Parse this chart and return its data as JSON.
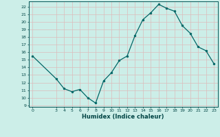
{
  "x": [
    0,
    3,
    4,
    5,
    6,
    7,
    8,
    9,
    10,
    11,
    12,
    13,
    14,
    15,
    16,
    17,
    18,
    19,
    20,
    21,
    22,
    23
  ],
  "y": [
    15.5,
    12.5,
    11.2,
    10.8,
    11.1,
    10.0,
    9.3,
    12.2,
    13.3,
    14.9,
    15.5,
    18.2,
    20.3,
    21.2,
    22.3,
    21.8,
    21.4,
    19.5,
    18.5,
    16.7,
    16.2,
    14.5
  ],
  "line_color": "#006666",
  "marker_color": "#006666",
  "bg_color": "#cceee8",
  "grid_color": "#aaddcc",
  "xlabel": "Humidex (Indice chaleur)",
  "xlim": [
    -0.5,
    23.5
  ],
  "ylim": [
    8.8,
    22.7
  ],
  "yticks": [
    9,
    10,
    11,
    12,
    13,
    14,
    15,
    16,
    17,
    18,
    19,
    20,
    21,
    22
  ],
  "xticks": [
    0,
    3,
    4,
    5,
    6,
    7,
    8,
    9,
    10,
    11,
    12,
    13,
    14,
    15,
    16,
    17,
    18,
    19,
    20,
    21,
    22,
    23
  ],
  "tick_fontsize": 4.5,
  "xlabel_fontsize": 6.0
}
